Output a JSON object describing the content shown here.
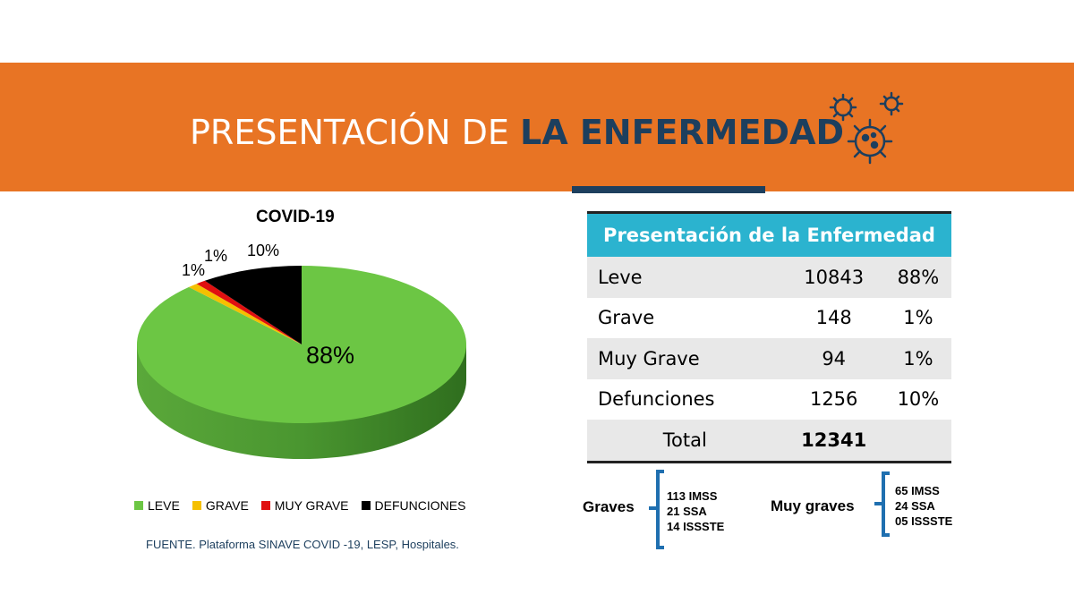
{
  "header": {
    "title_light": "PRESENTACIÓN DE ",
    "title_bold": "LA ENFERMEDAD",
    "icon": "virus-icon"
  },
  "chart_data": {
    "type": "pie",
    "title": "COVID-19",
    "categories": [
      "LEVE",
      "GRAVE",
      "MUY GRAVE",
      "DEFUNCIONES"
    ],
    "values": [
      88,
      1,
      1,
      10
    ],
    "labels": [
      "88%",
      "1%",
      "1%",
      "10%"
    ],
    "colors": [
      "#6cc644",
      "#f5c000",
      "#e01010",
      "#000000"
    ],
    "legend_position": "bottom"
  },
  "source": "FUENTE. Plataforma SINAVE COVID -19, LESP, Hospitales.",
  "table": {
    "header": "Presentación de la Enfermedad",
    "rows": [
      [
        "Leve",
        "10843",
        "88%"
      ],
      [
        "Grave",
        "148",
        "1%"
      ],
      [
        "Muy Grave",
        "94",
        "1%"
      ],
      [
        "Defunciones",
        "1256",
        "10%"
      ]
    ],
    "total": {
      "label": "Total",
      "value": "12341"
    }
  },
  "graves": {
    "label": "Graves",
    "items": [
      "113 IMSS",
      "21 SSA",
      "14 ISSSTE"
    ]
  },
  "muy_graves": {
    "label": "Muy graves",
    "items": [
      "65 IMSS",
      "24 SSA",
      "05 ISSSTE"
    ]
  }
}
